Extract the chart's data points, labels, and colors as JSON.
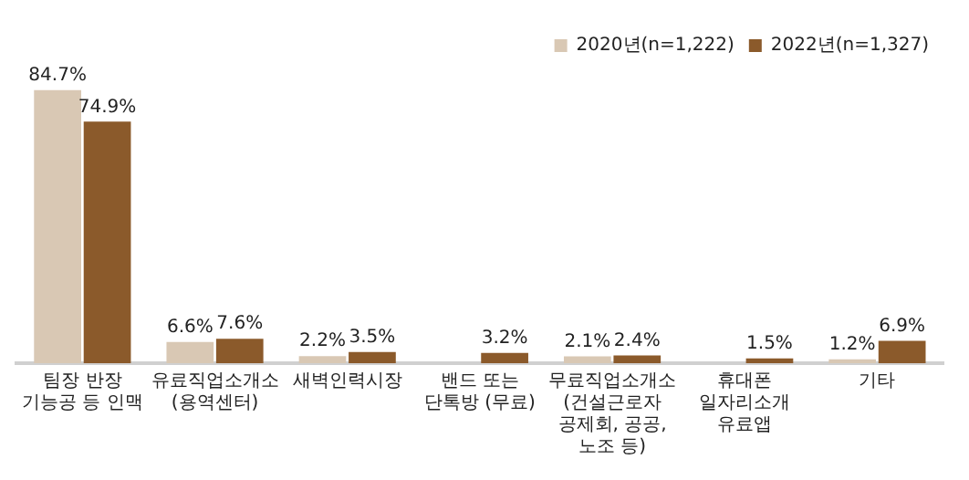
{
  "chart_data": {
    "type": "bar",
    "categories": [
      "팀장 반장\n기능공 등 인맥",
      "유료직업소개소\n(용역센터)",
      "새벽인력시장",
      "밴드 또는\n단톡방 (무료)",
      "무료직업소개소\n(건설근로자\n공제회, 공공,\n노조 등)",
      "휴대폰\n일자리소개\n유료앱",
      "기타"
    ],
    "series": [
      {
        "name": "2020년(n=1,222)",
        "color": "#d9c8b4",
        "values": [
          84.7,
          6.6,
          2.2,
          null,
          2.1,
          null,
          1.2
        ],
        "value_labels": [
          "84.7%",
          "6.6%",
          "2.2%",
          null,
          "2.1%",
          null,
          "1.2%"
        ]
      },
      {
        "name": "2022년(n=1,327)",
        "color": "#8b5a2b",
        "values": [
          74.9,
          7.6,
          3.5,
          3.2,
          2.4,
          1.5,
          6.9
        ],
        "value_labels": [
          "74.9%",
          "7.6%",
          "3.5%",
          "3.2%",
          "2.4%",
          "1.5%",
          "6.9%"
        ]
      }
    ],
    "legend": "top right",
    "grid": false
  }
}
